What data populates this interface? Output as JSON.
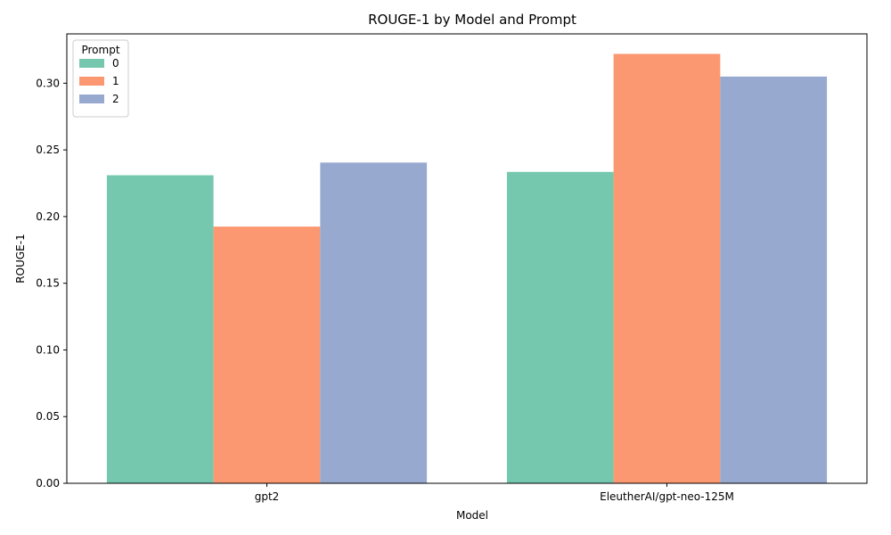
{
  "chart_data": {
    "type": "bar",
    "title": "ROUGE-1 by Model and Prompt",
    "xlabel": "Model",
    "ylabel": "ROUGE-1",
    "categories": [
      "gpt2",
      "EleutherAI/gpt-neo-125M"
    ],
    "series": [
      {
        "name": "0",
        "values": [
          0.231,
          0.2335
        ],
        "color": "#66c2a5"
      },
      {
        "name": "1",
        "values": [
          0.1925,
          0.322
        ],
        "color": "#fc8d62"
      },
      {
        "name": "2",
        "values": [
          0.2405,
          0.305
        ],
        "color": "#8da0cb"
      }
    ],
    "ylim": [
      0,
      0.337
    ],
    "yticks": [
      "0.00",
      "0.05",
      "0.10",
      "0.15",
      "0.20",
      "0.25",
      "0.30"
    ],
    "legend": {
      "title": "Prompt",
      "placement": "top-left"
    },
    "grid": false
  }
}
